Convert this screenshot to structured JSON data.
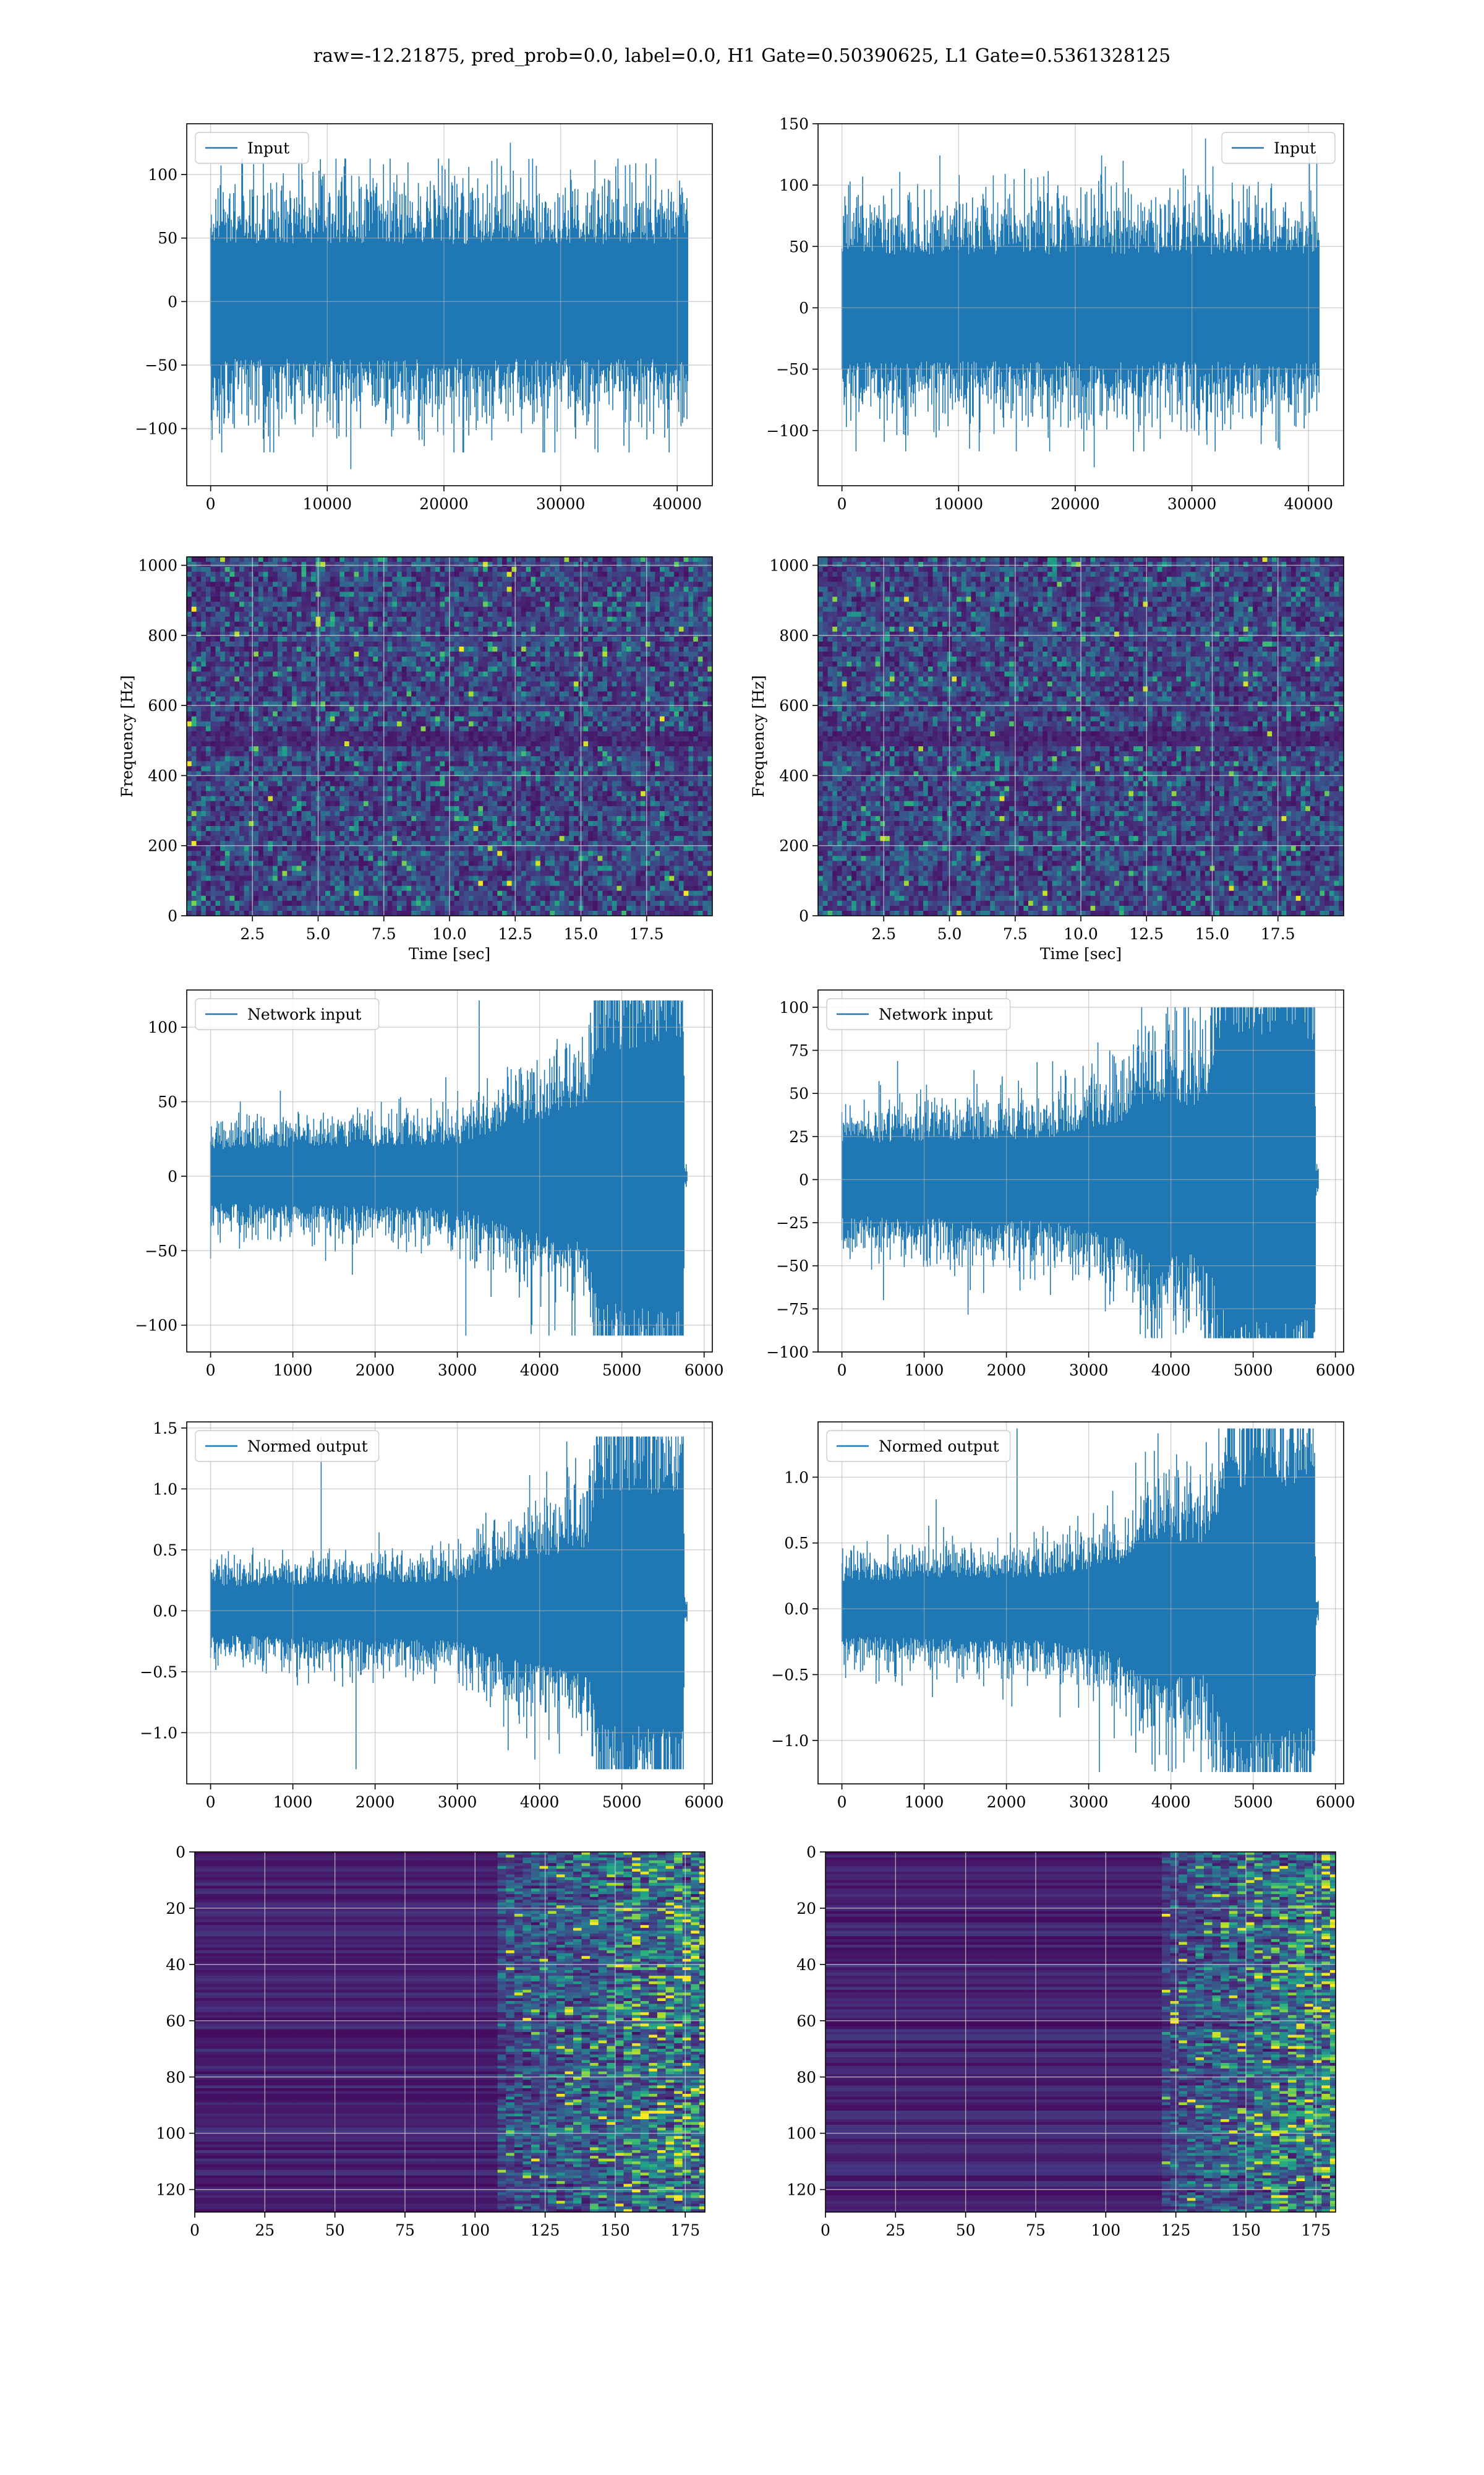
{
  "figure": {
    "suptitle": "raw=-12.21875, pred_prob=0.0, label=0.0, H1 Gate=0.50390625, L1 Gate=0.5361328125",
    "line_color": "#1f77b4",
    "grid_color": "#b0b0b0",
    "colormap": "viridis"
  },
  "chart_data": [
    {
      "id": "p0",
      "type": "line",
      "title": "",
      "xlabel": "",
      "ylabel": "",
      "xlim": [
        -2048,
        43008
      ],
      "ylim": [
        -145,
        140
      ],
      "xticks": [
        0,
        10000,
        20000,
        30000,
        40000
      ],
      "yticks": [
        -100,
        -50,
        0,
        50,
        100
      ],
      "grid": true,
      "legend_position": "upper-left",
      "series": [
        {
          "name": "Input",
          "x_range": [
            0,
            40960
          ],
          "amplitude_std": 30,
          "peak_max": 125,
          "peak_min": -132,
          "description": "stationary noise"
        }
      ]
    },
    {
      "id": "p1",
      "type": "line",
      "title": "",
      "xlabel": "",
      "ylabel": "",
      "xlim": [
        -2048,
        43008
      ],
      "ylim": [
        -145,
        150
      ],
      "xticks": [
        0,
        10000,
        20000,
        30000,
        40000
      ],
      "yticks": [
        -100,
        -50,
        0,
        50,
        100,
        150
      ],
      "grid": true,
      "legend_position": "upper-right",
      "series": [
        {
          "name": "Input",
          "x_range": [
            0,
            40960
          ],
          "amplitude_std": 29,
          "peak_max": 138,
          "peak_min": -130,
          "description": "stationary noise"
        }
      ]
    },
    {
      "id": "p2",
      "type": "heatmap",
      "title": "",
      "xlabel": "Time [sec]",
      "ylabel": "Frequency [Hz]",
      "xlim": [
        0,
        20
      ],
      "ylim": [
        0,
        1024
      ],
      "xticks": [
        2.5,
        5.0,
        7.5,
        10.0,
        12.5,
        15.0,
        17.5
      ],
      "yticks": [
        0,
        200,
        400,
        600,
        800,
        1000
      ],
      "grid": true,
      "colormap": "viridis",
      "note": "spectrogram of whitened noise with horizontal dark band near 500 Hz"
    },
    {
      "id": "p3",
      "type": "heatmap",
      "title": "",
      "xlabel": "Time [sec]",
      "ylabel": "Frequency [Hz]",
      "xlim": [
        0,
        20
      ],
      "ylim": [
        0,
        1024
      ],
      "xticks": [
        2.5,
        5.0,
        7.5,
        10.0,
        12.5,
        15.0,
        17.5
      ],
      "yticks": [
        0,
        200,
        400,
        600,
        800,
        1000
      ],
      "grid": true,
      "colormap": "viridis",
      "note": "spectrogram of whitened noise with horizontal dark band near 500 Hz"
    },
    {
      "id": "p4",
      "type": "line",
      "title": "",
      "xlabel": "",
      "ylabel": "",
      "xlim": [
        -290,
        6100
      ],
      "ylim": [
        -118,
        125
      ],
      "xticks": [
        0,
        1000,
        2000,
        3000,
        4000,
        5000,
        6000
      ],
      "yticks": [
        -100,
        -50,
        0,
        50,
        100
      ],
      "grid": true,
      "legend_position": "upper-left",
      "series": [
        {
          "name": "Network input",
          "x_range": [
            0,
            5800
          ],
          "envelope": [
            [
              0,
              12
            ],
            [
              3000,
              14
            ],
            [
              3600,
              22
            ],
            [
              4600,
              30
            ],
            [
              4700,
              55
            ],
            [
              5600,
              60
            ],
            [
              5750,
              60
            ],
            [
              5760,
              2
            ],
            [
              5800,
              2
            ]
          ],
          "peak_max": 118,
          "peak_min": -107
        }
      ]
    },
    {
      "id": "p5",
      "type": "line",
      "title": "",
      "xlabel": "",
      "ylabel": "",
      "xlim": [
        -290,
        6100
      ],
      "ylim": [
        -100,
        110
      ],
      "xticks": [
        0,
        1000,
        2000,
        3000,
        4000,
        5000,
        6000
      ],
      "yticks": [
        -100,
        -75,
        -50,
        -25,
        0,
        25,
        50,
        75,
        100
      ],
      "grid": true,
      "legend_position": "upper-left",
      "series": [
        {
          "name": "Network input",
          "x_range": [
            0,
            5800
          ],
          "envelope": [
            [
              0,
              14
            ],
            [
              2500,
              16
            ],
            [
              3400,
              22
            ],
            [
              3700,
              30
            ],
            [
              4400,
              28
            ],
            [
              4700,
              55
            ],
            [
              5600,
              55
            ],
            [
              5750,
              50
            ],
            [
              5760,
              3
            ],
            [
              5800,
              3
            ]
          ],
          "peak_max": 100,
          "peak_min": -92
        }
      ]
    },
    {
      "id": "p6",
      "type": "line",
      "title": "",
      "xlabel": "",
      "ylabel": "",
      "xlim": [
        -290,
        6100
      ],
      "ylim": [
        -1.42,
        1.55
      ],
      "xticks": [
        0,
        1000,
        2000,
        3000,
        4000,
        5000,
        6000
      ],
      "yticks": [
        -1.0,
        -0.5,
        0.0,
        0.5,
        1.0,
        1.5
      ],
      "grid": true,
      "legend_position": "upper-left",
      "series": [
        {
          "name": "Normed output",
          "x_range": [
            0,
            5800
          ],
          "envelope": [
            [
              0,
              0.13
            ],
            [
              3000,
              0.16
            ],
            [
              3600,
              0.25
            ],
            [
              4600,
              0.35
            ],
            [
              4700,
              0.6
            ],
            [
              5600,
              0.65
            ],
            [
              5750,
              0.65
            ],
            [
              5760,
              0.03
            ],
            [
              5800,
              0.03
            ]
          ],
          "peak_max": 1.43,
          "peak_min": -1.3
        }
      ]
    },
    {
      "id": "p7",
      "type": "line",
      "title": "",
      "xlabel": "",
      "ylabel": "",
      "xlim": [
        -290,
        6100
      ],
      "ylim": [
        -1.33,
        1.42
      ],
      "xticks": [
        0,
        1000,
        2000,
        3000,
        4000,
        5000,
        6000
      ],
      "yticks": [
        -1.0,
        -0.5,
        0.0,
        0.5,
        1.0
      ],
      "grid": true,
      "legend_position": "upper-left",
      "series": [
        {
          "name": "Normed output",
          "x_range": [
            0,
            5800
          ],
          "envelope": [
            [
              0,
              0.14
            ],
            [
              2500,
              0.16
            ],
            [
              3400,
              0.23
            ],
            [
              3700,
              0.35
            ],
            [
              4400,
              0.33
            ],
            [
              4700,
              0.6
            ],
            [
              5600,
              0.62
            ],
            [
              5750,
              0.55
            ],
            [
              5760,
              0.03
            ],
            [
              5800,
              0.03
            ]
          ],
          "peak_max": 1.37,
          "peak_min": -1.24
        }
      ]
    },
    {
      "id": "p8",
      "type": "heatmap",
      "title": "",
      "xlabel": "",
      "ylabel": "",
      "xlim": [
        0,
        182
      ],
      "ylim": [
        128,
        0
      ],
      "xticks": [
        0,
        25,
        50,
        75,
        100,
        125,
        150,
        175
      ],
      "yticks": [
        0,
        20,
        40,
        60,
        80,
        100,
        120
      ],
      "grid": true,
      "colormap": "viridis",
      "note": "128 feature rows by 182 time steps, activity concentrated after step ~105"
    },
    {
      "id": "p9",
      "type": "heatmap",
      "title": "",
      "xlabel": "",
      "ylabel": "",
      "xlim": [
        0,
        182
      ],
      "ylim": [
        128,
        0
      ],
      "xticks": [
        0,
        25,
        50,
        75,
        100,
        125,
        150,
        175
      ],
      "yticks": [
        0,
        20,
        40,
        60,
        80,
        100,
        120
      ],
      "grid": true,
      "colormap": "viridis",
      "note": "128 feature rows by 182 time steps, activity concentrated after step ~120"
    }
  ]
}
